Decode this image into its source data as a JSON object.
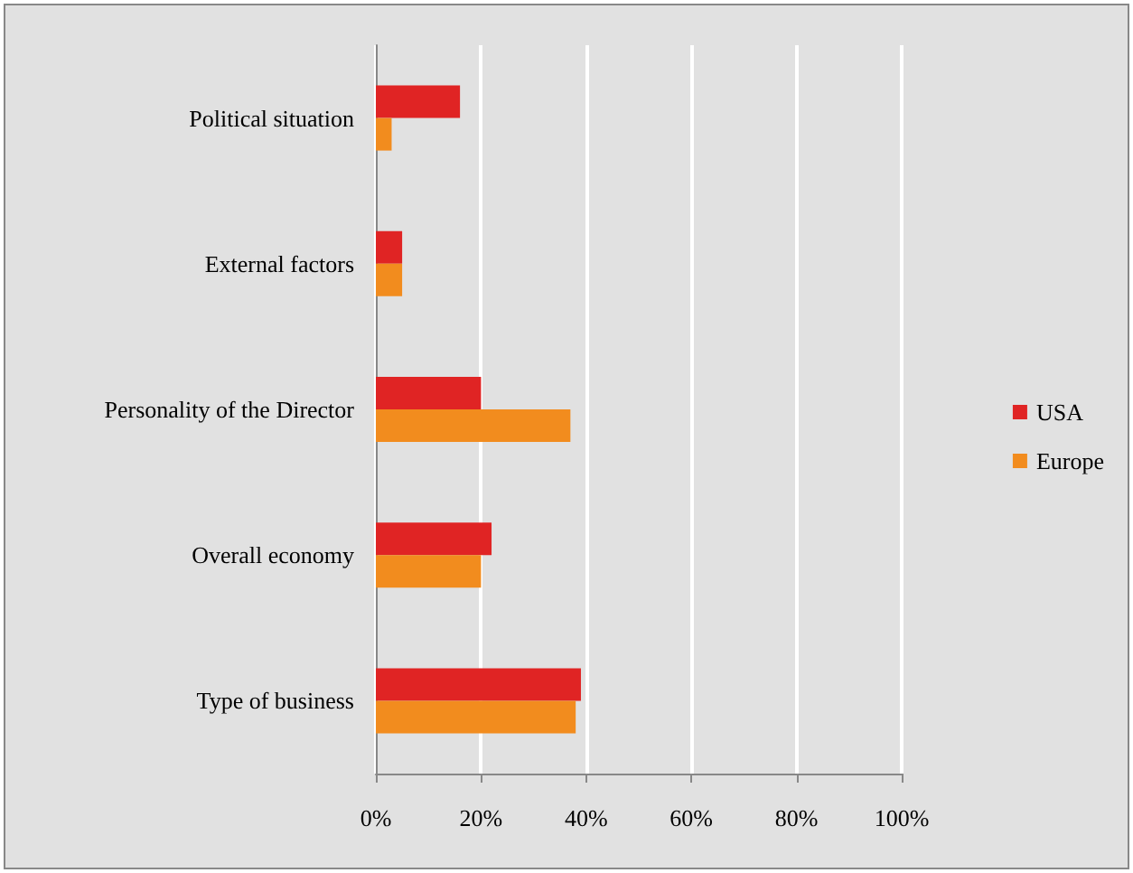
{
  "chart_data": {
    "type": "bar",
    "orientation": "horizontal",
    "categories": [
      "Political situation",
      "External factors",
      "Personality of the Director",
      "Overall economy",
      "Type of business"
    ],
    "series": [
      {
        "name": "USA",
        "color": "#e02424",
        "values": [
          16,
          5,
          20,
          22,
          39
        ]
      },
      {
        "name": "Europe",
        "color": "#f28c1e",
        "values": [
          3,
          5,
          37,
          20,
          38
        ]
      }
    ],
    "xlim": [
      0,
      100
    ],
    "xticks": [
      {
        "value": 0,
        "label": "0%"
      },
      {
        "value": 20,
        "label": "20%"
      },
      {
        "value": 40,
        "label": "40%"
      },
      {
        "value": 60,
        "label": "60%"
      },
      {
        "value": 80,
        "label": "80%"
      },
      {
        "value": 100,
        "label": "100%"
      }
    ],
    "grid": "x",
    "legend": "right"
  }
}
